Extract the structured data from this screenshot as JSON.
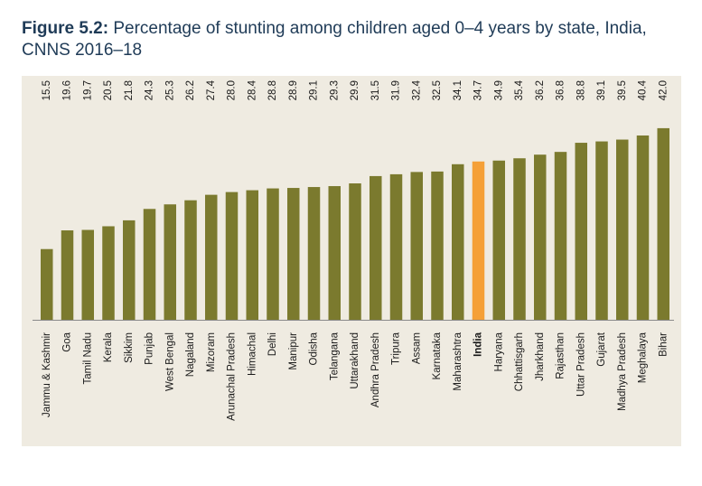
{
  "title": {
    "label": "Figure 5.2:",
    "text": "Percentage of stunting among children aged 0–4 years by state, India, CNNS 2016–18"
  },
  "colors": {
    "bar": "#7b7a2e",
    "highlight": "#f5a037",
    "panel": "#efebe1",
    "axis": "#8a8a8a"
  },
  "chart_data": {
    "type": "bar",
    "title": "Percentage of stunting among children aged 0–4 years by state, India, CNNS 2016–18",
    "categories": [
      "Jammu & Kashmir",
      "Goa",
      "Tamil Nadu",
      "Kerala",
      "Sikkim",
      "Punjab",
      "West Bengal",
      "Nagaland",
      "Mizoram",
      "Arunachal Pradesh",
      "Himachal",
      "Delhi",
      "Manipur",
      "Odisha",
      "Telangana",
      "Uttarakhand",
      "Andhra Pradesh",
      "Tripura",
      "Assam",
      "Karnataka",
      "Maharashtra",
      "India",
      "Haryana",
      "Chhattisgarh",
      "Jharkhand",
      "Rajasthan",
      "Uttar Pradesh",
      "Gujarat",
      "Madhya Pradesh",
      "Meghalaya",
      "Bihar"
    ],
    "values": [
      15.5,
      19.6,
      19.7,
      20.5,
      21.8,
      24.3,
      25.3,
      26.2,
      27.4,
      28.0,
      28.4,
      28.8,
      28.9,
      29.1,
      29.3,
      29.9,
      31.5,
      31.9,
      32.4,
      32.5,
      34.1,
      34.7,
      34.9,
      35.4,
      36.2,
      36.8,
      38.8,
      39.1,
      39.5,
      40.4,
      42.0
    ],
    "value_labels": [
      "15.5",
      "19.6",
      "19.7",
      "20.5",
      "21.8",
      "24.3",
      "25.3",
      "26.2",
      "27.4",
      "28.0",
      "28.4",
      "28.8",
      "28.9",
      "29.1",
      "29.3",
      "29.9",
      "31.5",
      "31.9",
      "32.4",
      "32.5",
      "34.1",
      "34.7",
      "34.9",
      "35.4",
      "36.2",
      "36.8",
      "38.8",
      "39.1",
      "39.5",
      "40.4",
      "42.0"
    ],
    "highlight_category": "India",
    "ylim": [
      0,
      42
    ],
    "grid": false,
    "legend": "none",
    "xlabel": "",
    "ylabel": ""
  }
}
